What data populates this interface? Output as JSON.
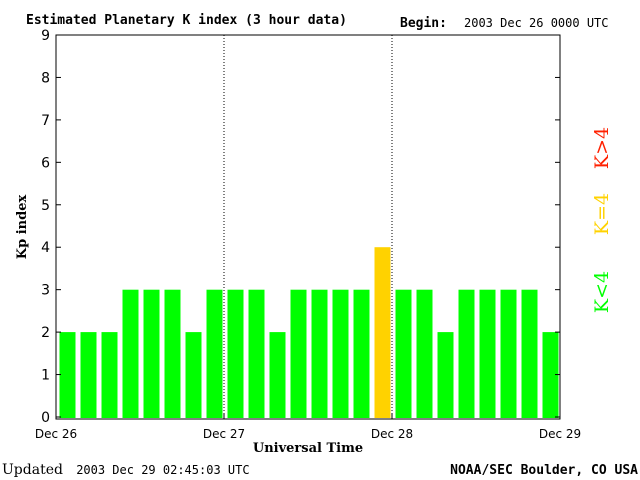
{
  "header": {
    "title": "Estimated Planetary K index (3 hour data)",
    "begin_label": "Begin:",
    "begin_value": "2003 Dec 26 0000 UTC"
  },
  "footer": {
    "updated_label": "Updated",
    "updated_value": "2003 Dec 29 02:45:03 UTC",
    "credit": "NOAA/SEC Boulder, CO USA"
  },
  "legend": {
    "above": "K>4",
    "equal": "K=4",
    "below": "K<4"
  },
  "colors": {
    "below": "#00ff00",
    "equal": "#ffd200",
    "above": "#ff2000"
  },
  "chart_data": {
    "type": "bar",
    "ylabel": "Kp index",
    "xlabel": "Universal Time",
    "ylim": [
      0,
      9
    ],
    "yticks": [
      "0",
      "1",
      "2",
      "3",
      "4",
      "5",
      "6",
      "7",
      "8",
      "9"
    ],
    "xticks": [
      "Dec 26",
      "Dec 27",
      "Dec 28",
      "Dec 29"
    ],
    "values": [
      2,
      2,
      2,
      3,
      3,
      3,
      2,
      3,
      3,
      3,
      2,
      3,
      3,
      3,
      3,
      4,
      3,
      3,
      2,
      3,
      3,
      3,
      3,
      2
    ],
    "day_dividers": [
      "Dec 27",
      "Dec 28"
    ],
    "grid": false
  }
}
